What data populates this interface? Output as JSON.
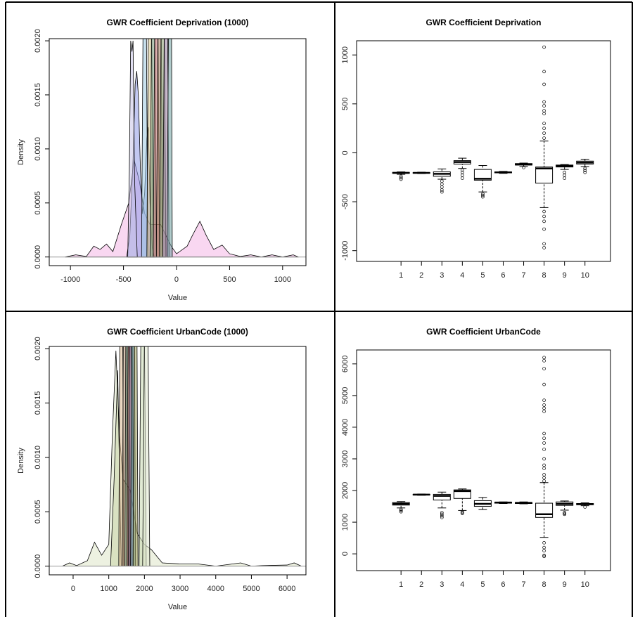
{
  "chart_data": [
    {
      "type": "density",
      "title": "GWR Coefficient Deprivation (1000)",
      "x_label": "Value",
      "y_label": "Density",
      "xlim": [
        -1200,
        1220
      ],
      "ylim": [
        -8e-05,
        0.00202
      ],
      "xticks": [
        -1000,
        -500,
        0,
        500,
        1000
      ],
      "yticks": [
        {
          "value": 0,
          "label": "0.0000"
        },
        {
          "value": 0.0005,
          "label": "0.0005"
        },
        {
          "value": 0.001,
          "label": "0.0010"
        },
        {
          "value": 0.0015,
          "label": "0.0015"
        },
        {
          "value": 0.002,
          "label": "0.0020"
        }
      ],
      "series": [
        {
          "color": "#f4b6e6",
          "x": [
            -1050,
            -950,
            -850,
            -780,
            -720,
            -660,
            -600,
            -520,
            -450,
            -400,
            -350,
            -300,
            -250,
            -200,
            -150,
            -100,
            -50,
            0,
            100,
            150,
            220,
            280,
            350,
            430,
            500,
            600,
            700,
            800,
            900,
            1000,
            1100,
            1150
          ],
          "values": [
            0,
            2e-05,
            5e-06,
            0.0001,
            7e-05,
            0.00012,
            5e-05,
            0.0003,
            0.0005,
            0.0009,
            0.0007,
            0.0004,
            0.0003,
            0.0003,
            0.0003,
            0.0002,
            0.0001,
            3e-05,
            0.0001,
            0.0002,
            0.00033,
            0.0002,
            7e-05,
            0.00011,
            3e-05,
            5e-06,
            2e-05,
            0,
            2e-05,
            0,
            2e-05,
            0
          ]
        },
        {
          "color": "#8f9be8",
          "x": [
            -470,
            -440,
            -410,
            -390,
            -375,
            -360,
            -340,
            -320,
            -300,
            -280,
            -265,
            -250,
            -230,
            -210
          ],
          "values": [
            0,
            0.0002,
            0.0009,
            0.0016,
            0.00172,
            0.0015,
            0.0008,
            0.0004,
            0.0006,
            0.0011,
            0.0012,
            0.0005,
            0.0001,
            0
          ]
        },
        {
          "color": "#c8c4e8",
          "x": [
            -460,
            -445,
            -432,
            -420,
            -410,
            -395,
            -370
          ],
          "values": [
            0,
            0.0008,
            0.002,
            0.0019,
            0.002,
            0.0007,
            0
          ]
        },
        {
          "color": "#9cc8e0",
          "x": [
            -330,
            -310,
            -300,
            -290,
            -270
          ],
          "values": [
            0,
            0.003,
            0.005,
            0.003,
            0
          ]
        },
        {
          "color": "#d8c890",
          "x": [
            -280,
            -260,
            -250,
            -240,
            -220
          ],
          "values": [
            0,
            0.003,
            0.005,
            0.003,
            0
          ]
        },
        {
          "color": "#7fa07f",
          "x": [
            -250,
            -230,
            -220,
            -210,
            -190
          ],
          "values": [
            0,
            0.003,
            0.005,
            0.003,
            0
          ]
        },
        {
          "color": "#c07070",
          "x": [
            -220,
            -200,
            -190,
            -180,
            -160
          ],
          "values": [
            0,
            0.003,
            0.005,
            0.003,
            0
          ]
        },
        {
          "color": "#a08060",
          "x": [
            -190,
            -170,
            -160,
            -150,
            -130
          ],
          "values": [
            0,
            0.003,
            0.005,
            0.003,
            0
          ]
        },
        {
          "color": "#8a9a70",
          "x": [
            -160,
            -140,
            -130,
            -120,
            -100
          ],
          "values": [
            0,
            0.003,
            0.005,
            0.003,
            0
          ]
        },
        {
          "color": "#9a7fa0",
          "x": [
            -130,
            -110,
            -100,
            -90,
            -70
          ],
          "values": [
            0,
            0.003,
            0.005,
            0.003,
            0
          ]
        },
        {
          "color": "#70a0a0",
          "x": [
            -90,
            -70,
            -60,
            -50,
            -40
          ],
          "values": [
            0,
            0.003,
            0.005,
            0.003,
            0
          ]
        }
      ]
    },
    {
      "type": "box",
      "title": "GWR Coefficient Deprivation",
      "categories": [
        "1",
        "2",
        "3",
        "4",
        "5",
        "6",
        "7",
        "8",
        "9",
        "10"
      ],
      "ylim": [
        -1110,
        1145
      ],
      "yticks": [
        -1000,
        -500,
        0,
        500,
        1000
      ],
      "boxes": {
        "min": [
          -220,
          -212,
          -270,
          -160,
          -400,
          -210,
          -140,
          -560,
          -170,
          -140
        ],
        "q1": [
          -210,
          -208,
          -240,
          -115,
          -280,
          -205,
          -125,
          -310,
          -145,
          -115
        ],
        "median": [
          -205,
          -205,
          -215,
          -95,
          -265,
          -200,
          -120,
          -160,
          -135,
          -100
        ],
        "q3": [
          -200,
          -202,
          -195,
          -80,
          -170,
          -195,
          -110,
          -145,
          -125,
          -85
        ],
        "max": [
          -195,
          -198,
          -165,
          -55,
          -130,
          -190,
          -105,
          120,
          -120,
          -65
        ],
        "outliers": [
          [
            -240,
            -255,
            -270
          ],
          [],
          [
            -290,
            -320,
            -350,
            -380,
            -400
          ],
          [
            -175,
            -200,
            -230,
            -260
          ],
          [
            -420,
            -435,
            -450
          ],
          [],
          [
            -150
          ],
          [
            1080,
            830,
            700,
            520,
            480,
            430,
            400,
            300,
            250,
            200,
            150,
            -600,
            -650,
            -700,
            -780,
            -930,
            -970
          ],
          [
            -200,
            -230,
            -260
          ],
          [
            -160,
            -180,
            -200
          ]
        ]
      }
    },
    {
      "type": "density",
      "title": "GWR Coefficient UrbanCode (1000)",
      "x_label": "Value",
      "y_label": "Density",
      "xlim": [
        -670,
        6530
      ],
      "ylim": [
        -8e-05,
        0.00202
      ],
      "xticks": [
        0,
        1000,
        2000,
        3000,
        4000,
        5000,
        6000
      ],
      "yticks": [
        {
          "value": 0,
          "label": "0.0000"
        },
        {
          "value": 0.0005,
          "label": "0.0005"
        },
        {
          "value": 0.001,
          "label": "0.0010"
        },
        {
          "value": 0.0015,
          "label": "0.0015"
        },
        {
          "value": 0.002,
          "label": "0.0020"
        }
      ],
      "series": [
        {
          "color": "#dfe6c8",
          "x": [
            -300,
            -100,
            100,
            400,
            600,
            800,
            1000,
            1100,
            1200,
            1300,
            1400,
            1600,
            1800,
            2000,
            2200,
            2500,
            3000,
            3500,
            4000,
            4700,
            5000,
            5300,
            6000,
            6200,
            6400
          ],
          "values": [
            0,
            3e-05,
            5e-06,
            5e-05,
            0.00022,
            0.0001,
            0.0002,
            0.0012,
            0.00198,
            0.0012,
            0.0008,
            0.0007,
            0.0003,
            0.0002,
            0.00015,
            3e-05,
            2e-05,
            2e-05,
            0,
            3e-05,
            0,
            5e-06,
            1e-05,
            3e-05,
            0
          ]
        },
        {
          "color": "#c9d4a8",
          "x": [
            1050,
            1150,
            1250,
            1300,
            1350
          ],
          "values": [
            0,
            0.0008,
            0.0018,
            0.0009,
            0
          ]
        },
        {
          "color": "#d8b890",
          "x": [
            1280,
            1320,
            1350,
            1380,
            1420
          ],
          "values": [
            0,
            0.003,
            0.005,
            0.003,
            0
          ]
        },
        {
          "color": "#b09070",
          "x": [
            1380,
            1420,
            1450,
            1480,
            1520
          ],
          "values": [
            0,
            0.003,
            0.005,
            0.003,
            0
          ]
        },
        {
          "color": "#7a9a7a",
          "x": [
            1450,
            1490,
            1520,
            1550,
            1590
          ],
          "values": [
            0,
            0.003,
            0.005,
            0.003,
            0
          ]
        },
        {
          "color": "#a05050",
          "x": [
            1510,
            1550,
            1580,
            1610,
            1650
          ],
          "values": [
            0,
            0.003,
            0.005,
            0.003,
            0
          ]
        },
        {
          "color": "#8a7aa0",
          "x": [
            1550,
            1590,
            1620,
            1650,
            1690
          ],
          "values": [
            0,
            0.003,
            0.005,
            0.003,
            0
          ]
        },
        {
          "color": "#70a0a0",
          "x": [
            1610,
            1650,
            1680,
            1710,
            1750
          ],
          "values": [
            0,
            0.003,
            0.005,
            0.003,
            0
          ]
        },
        {
          "color": "#a0a060",
          "x": [
            1680,
            1720,
            1750,
            1780,
            1820
          ],
          "values": [
            0,
            0.003,
            0.005,
            0.003,
            0
          ]
        },
        {
          "color": "#c8d8b0",
          "x": [
            1850,
            1920,
            1950,
            1980,
            2050
          ],
          "values": [
            0,
            0.003,
            0.005,
            0.003,
            0
          ]
        },
        {
          "color": "#e0e8d0",
          "x": [
            1950,
            2020,
            2050,
            2080,
            2150
          ],
          "values": [
            0,
            0.003,
            0.005,
            0.003,
            0
          ]
        }
      ]
    },
    {
      "type": "box",
      "title": "GWR Coefficient UrbanCode",
      "categories": [
        "1",
        "2",
        "3",
        "4",
        "5",
        "6",
        "7",
        "8",
        "9",
        "10"
      ],
      "ylim": [
        -530,
        6440
      ],
      "yticks": [
        0,
        1000,
        2000,
        3000,
        4000,
        5000,
        6000
      ],
      "boxes": {
        "min": [
          1450,
          1850,
          1450,
          1370,
          1400,
          1590,
          1580,
          520,
          1380,
          1520
        ],
        "q1": [
          1540,
          1860,
          1700,
          1750,
          1500,
          1600,
          1590,
          1150,
          1530,
          1550
        ],
        "median": [
          1580,
          1870,
          1830,
          1980,
          1580,
          1620,
          1610,
          1250,
          1580,
          1570
        ],
        "q3": [
          1620,
          1880,
          1880,
          2020,
          1680,
          1630,
          1625,
          1600,
          1640,
          1590
        ],
        "max": [
          1650,
          1890,
          1950,
          2050,
          1780,
          1640,
          1640,
          2250,
          1670,
          1610
        ],
        "outliers": [
          [
            1330,
            1370,
            1400
          ],
          [],
          [
            1150,
            1200,
            1250,
            1300
          ],
          [
            1280,
            1300,
            1330
          ],
          [],
          [],
          [],
          [
            6200,
            6100,
            5850,
            5350,
            4850,
            4700,
            4600,
            4500,
            3800,
            3650,
            3500,
            3300,
            3000,
            2800,
            2700,
            2500,
            2400,
            2300,
            350,
            200,
            100,
            -50,
            -80
          ],
          [
            1250,
            1280,
            1300
          ],
          [
            1480
          ]
        ]
      }
    }
  ]
}
